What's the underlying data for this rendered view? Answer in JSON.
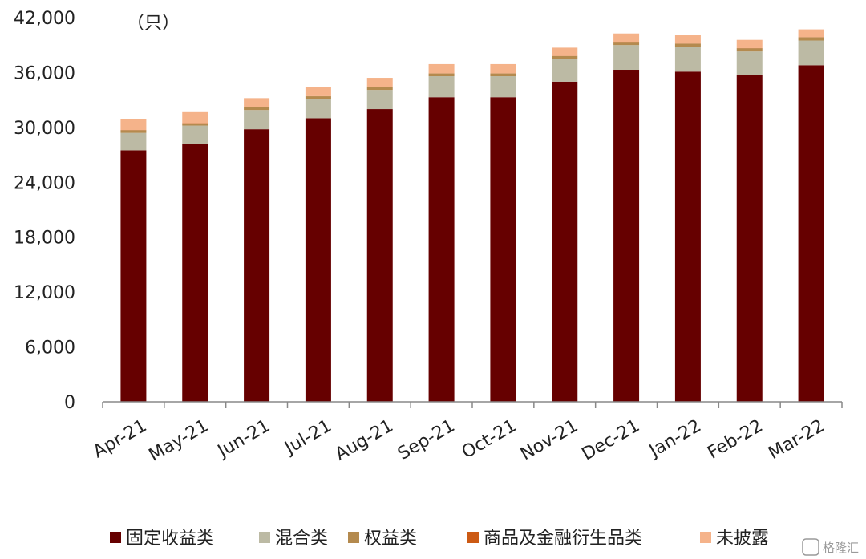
{
  "chart_data": {
    "type": "bar",
    "stacked": true,
    "unit_label": "（只）",
    "categories": [
      "Apr-21",
      "May-21",
      "Jun-21",
      "Jul-21",
      "Aug-21",
      "Sep-21",
      "Oct-21",
      "Nov-21",
      "Dec-21",
      "Jan-22",
      "Feb-22",
      "Mar-22"
    ],
    "ylim": [
      0,
      42000
    ],
    "yticks": [
      0,
      6000,
      12000,
      18000,
      24000,
      30000,
      36000,
      42000
    ],
    "ytick_labels": [
      "0",
      "6,000",
      "12,000",
      "18,000",
      "24,000",
      "30,000",
      "36,000",
      "42,000"
    ],
    "grid": false,
    "legend_position": "bottom",
    "series": [
      {
        "name": "固定收益类",
        "color": "#660000",
        "values": [
          27500,
          28200,
          29800,
          31000,
          32000,
          33300,
          33300,
          35000,
          36300,
          36100,
          35700,
          36800
        ]
      },
      {
        "name": "混合类",
        "color": "#bcbaa4",
        "values": [
          1900,
          2000,
          2100,
          2100,
          2100,
          2300,
          2300,
          2500,
          2700,
          2700,
          2600,
          2700
        ]
      },
      {
        "name": "权益类",
        "color": "#b48a4e",
        "values": [
          300,
          250,
          280,
          300,
          300,
          300,
          300,
          300,
          350,
          350,
          350,
          350
        ]
      },
      {
        "name": "商品及金融衍生品类",
        "color": "#cc5a14",
        "values": [
          20,
          20,
          20,
          20,
          20,
          20,
          20,
          20,
          20,
          20,
          20,
          20
        ]
      },
      {
        "name": "未披露",
        "color": "#f5b38a",
        "values": [
          1200,
          1200,
          1000,
          1000,
          1000,
          1000,
          1000,
          900,
          900,
          900,
          900,
          850
        ]
      }
    ]
  },
  "watermark": "格隆汇"
}
